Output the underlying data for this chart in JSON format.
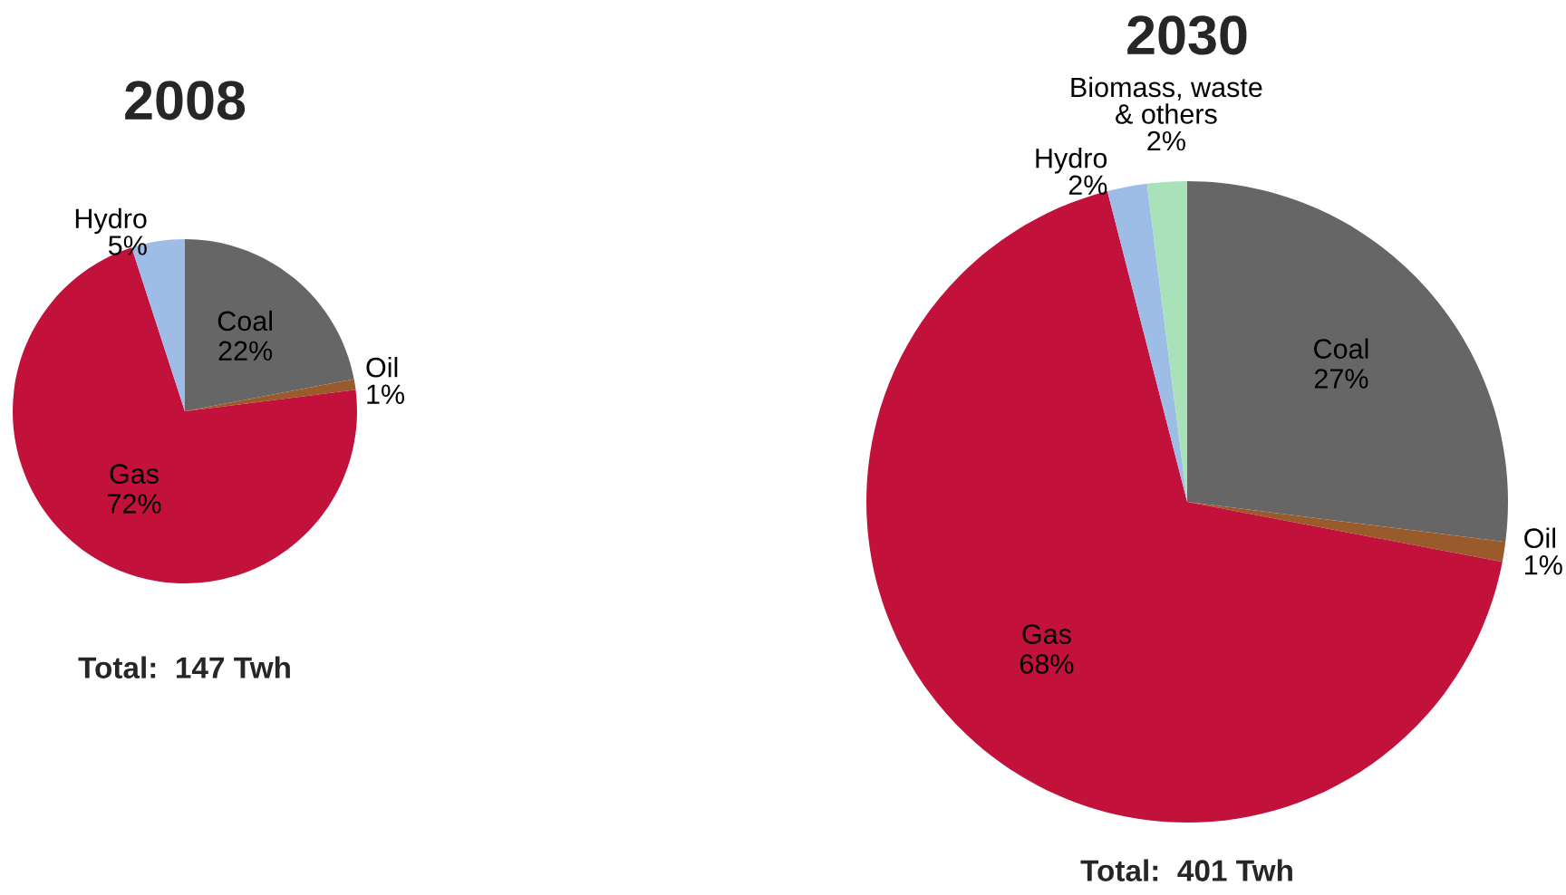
{
  "chart_data": [
    {
      "type": "pie",
      "title": "2008",
      "categories": [
        "Coal",
        "Oil",
        "Gas",
        "Hydro"
      ],
      "values": [
        22,
        1,
        72,
        5
      ],
      "value_labels": [
        "22%",
        "1%",
        "72%",
        "5%"
      ],
      "colors": [
        "#666666",
        "#9a5b2c",
        "#c2123b",
        "#9dbde6"
      ],
      "annotations": [
        "Total:  147 Twh"
      ]
    },
    {
      "type": "pie",
      "title": "2030",
      "categories": [
        "Coal",
        "Oil",
        "Gas",
        "Hydro",
        "Biomass, waste\n& others"
      ],
      "values": [
        27,
        1,
        68,
        2,
        2
      ],
      "value_labels": [
        "27%",
        "1%",
        "68%",
        "2%",
        "2%"
      ],
      "colors": [
        "#666666",
        "#9a5b2c",
        "#c2123b",
        "#9dbde6",
        "#a9e2b9"
      ],
      "annotations": [
        "Total:  401 Twh"
      ]
    }
  ]
}
